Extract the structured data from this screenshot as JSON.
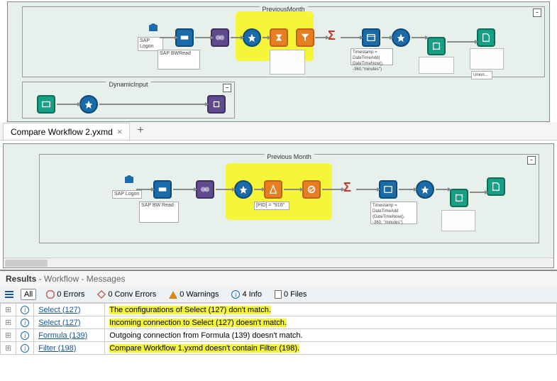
{
  "pane1": {
    "container1_label": "PreviousMonth",
    "container2_label": "DynamicInput",
    "sap_logon_label": "SAP Logon",
    "sap_bw_label": "SAP BWRead",
    "timestamp_label": "Timestamp = DateTimeAdd( DateTimeNow(), -360,\"minutes\")",
    "union_label": "Union..."
  },
  "tabbar": {
    "tab1_label": "Compare Workflow 2.yxmd",
    "add_label": "+"
  },
  "pane2": {
    "container_label": "Previous Month",
    "sap_logon_label": "SAP Logon",
    "sap_bw_label": "SAP BW Read",
    "filter_label": "[PID] = \"916\"",
    "timestamp_label": "Timestamp = DateTimeAdd (DateTimeNow(), -360, \"minutes\")"
  },
  "results": {
    "header_main": "Results",
    "header_sub": " - Workflow - Messages",
    "toolbar": {
      "all": "All",
      "errors": "0 Errors",
      "conv_errors": "0 Conv Errors",
      "warnings": "0 Warnings",
      "info": "4 Info",
      "files": "0 Files"
    },
    "rows": [
      {
        "type": "info",
        "link": "Select (127)",
        "msg": "The configurations of Select (127) don't match.",
        "hl": true
      },
      {
        "type": "info",
        "link": "Select (127)",
        "msg": "Incoming connection to Select (127) doesn't match.",
        "hl": true
      },
      {
        "type": "info",
        "link": "Formula (139)",
        "msg": "Outgoing connection from Formula (139) doesn't match.",
        "hl": false
      },
      {
        "type": "info",
        "link": "Filter (198)",
        "msg": "Compare Workflow 1.yxmd doesn't contain Filter (198).",
        "hl": true
      }
    ]
  },
  "colors": {
    "canvas_bg": "#e8f0eb",
    "highlight": "#f5f53a",
    "tool_blue": "#1a6ba8",
    "tool_orange": "#e67e22",
    "tool_purple": "#5e4a8c",
    "tool_teal": "#16a085",
    "link": "#1a5490"
  }
}
